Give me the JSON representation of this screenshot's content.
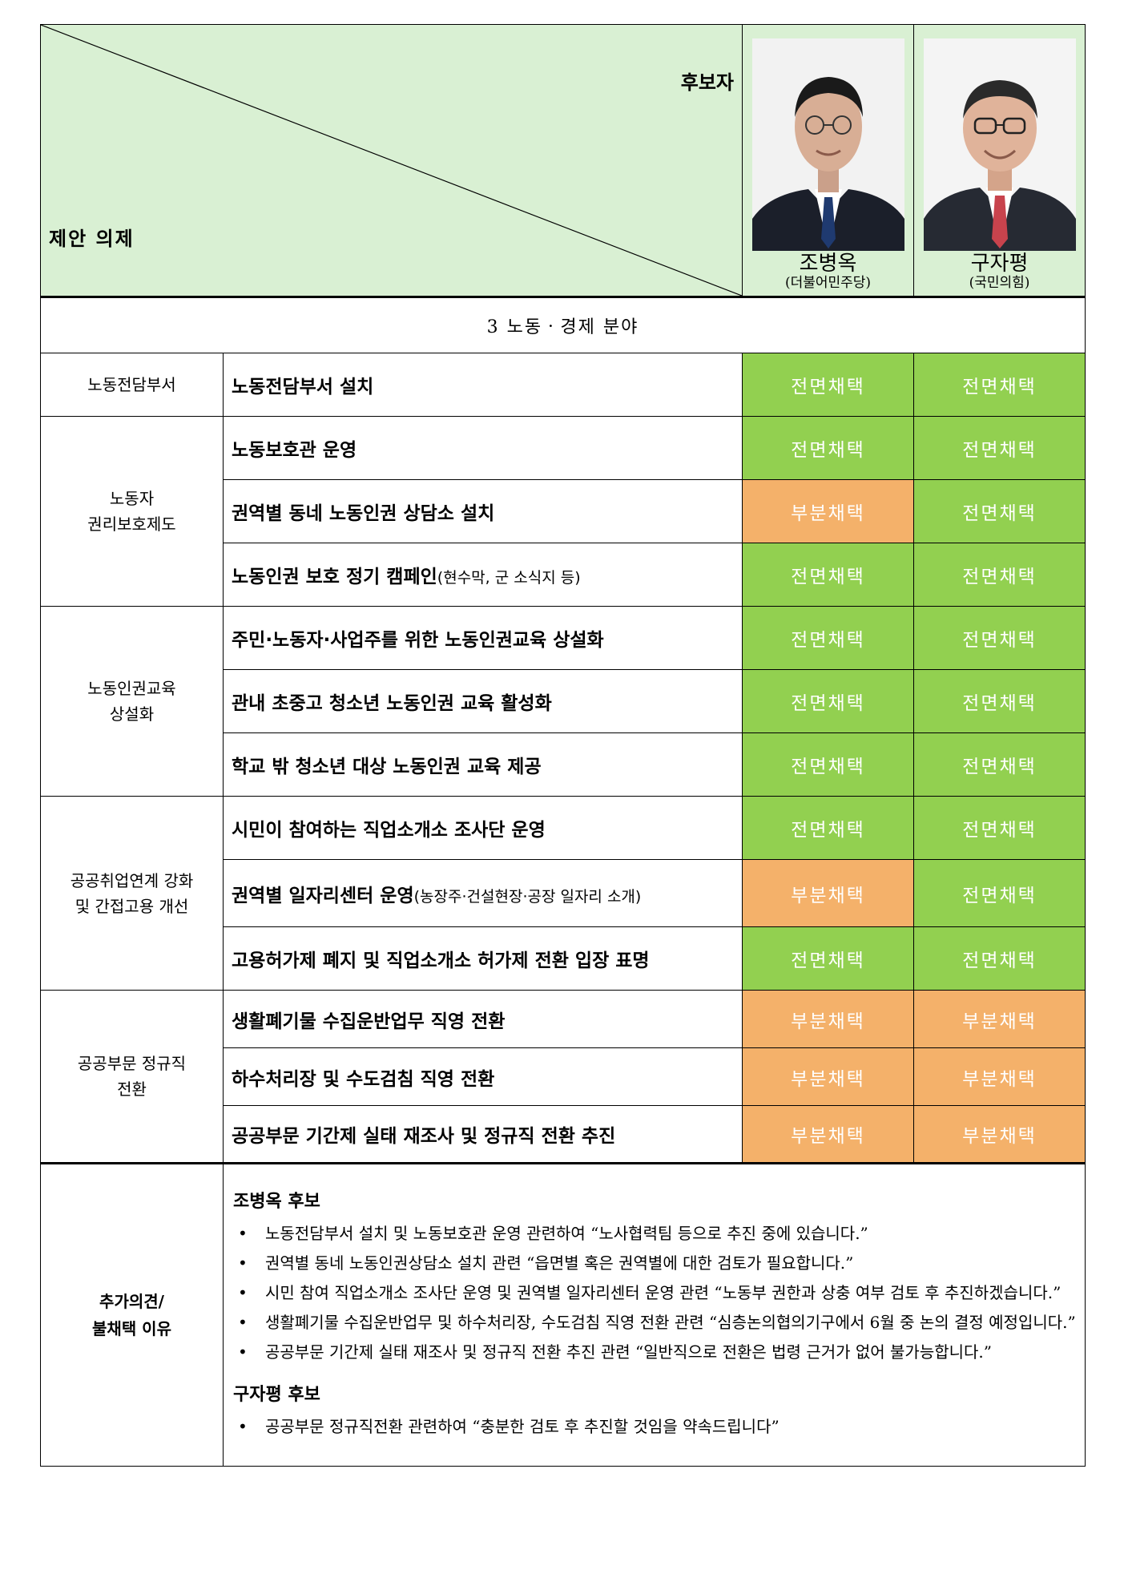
{
  "header": {
    "candidate_label": "후보자",
    "agenda_label": "제안 의제",
    "candidates": [
      {
        "name": "조병옥",
        "party": "(더불어민주당)",
        "tie_color": "#1f3a70",
        "suit_color": "#1b1f2a"
      },
      {
        "name": "구자평",
        "party": "(국민의힘)",
        "tie_color": "#c8434d",
        "suit_color": "#262a33"
      }
    ]
  },
  "section_title": "3 노동ㆍ경제 분야",
  "status_colors": {
    "전면채택": "#92d050",
    "부분채택": "#f4b16a"
  },
  "groups": [
    {
      "category": "노동전담부서",
      "rows": [
        {
          "item": "노동전담부서 설치",
          "note": "",
          "status": [
            "전면채택",
            "전면채택"
          ]
        }
      ]
    },
    {
      "category": "노동자\n권리보호제도",
      "rows": [
        {
          "item": "노동보호관 운영",
          "note": "",
          "status": [
            "전면채택",
            "전면채택"
          ]
        },
        {
          "item": "권역별 동네 노동인권 상담소 설치",
          "note": "",
          "status": [
            "부분채택",
            "전면채택"
          ]
        },
        {
          "item": "노동인권 보호 정기 캠페인",
          "note": "(현수막, 군 소식지 등)",
          "status": [
            "전면채택",
            "전면채택"
          ]
        }
      ]
    },
    {
      "category": "노동인권교육\n상설화",
      "rows": [
        {
          "item": "주민·노동자·사업주를 위한 노동인권교육 상설화",
          "note": "",
          "status": [
            "전면채택",
            "전면채택"
          ]
        },
        {
          "item": "관내 초중고 청소년 노동인권 교육 활성화",
          "note": "",
          "status": [
            "전면채택",
            "전면채택"
          ]
        },
        {
          "item": "학교 밖 청소년 대상 노동인권 교육 제공",
          "note": "",
          "status": [
            "전면채택",
            "전면채택"
          ]
        }
      ]
    },
    {
      "category": "공공취업연계 강화\n및 간접고용 개선",
      "rows": [
        {
          "item": "시민이 참여하는 직업소개소 조사단 운영",
          "note": "",
          "status": [
            "전면채택",
            "전면채택"
          ]
        },
        {
          "item": "권역별 일자리센터 운영",
          "note": "(농장주·건설현장·공장 일자리 소개)",
          "status": [
            "부분채택",
            "전면채택"
          ]
        },
        {
          "item": "고용허가제 폐지 및 직업소개소 허가제 전환 입장 표명",
          "note": "",
          "status": [
            "전면채택",
            "전면채택"
          ]
        }
      ]
    },
    {
      "category": "공공부문 정규직\n전환",
      "rows": [
        {
          "item": "생활폐기물 수집운반업무 직영 전환",
          "note": "",
          "status": [
            "부분채택",
            "부분채택"
          ]
        },
        {
          "item": "하수처리장 및 수도검침 직영 전환",
          "note": "",
          "status": [
            "부분채택",
            "부분채택"
          ]
        },
        {
          "item": "공공부문 기간제 실태 재조사 및 정규직 전환 추진",
          "note": "",
          "status": [
            "부분채택",
            "부분채택"
          ]
        }
      ]
    }
  ],
  "notes": {
    "label": "추가의견/\n불채택 이유",
    "blocks": [
      {
        "who": "조병옥 후보",
        "items": [
          "노동전담부서 설치 및 노동보호관 운영 관련하여 “노사협력팀 등으로 추진 중에 있습니다.”",
          "권역별 동네 노동인권상담소 설치 관련 “읍면별 혹은 권역별에 대한 검토가 필요합니다.”",
          "시민 참여 직업소개소 조사단 운영 및 권역별 일자리센터 운영 관련 “노동부 권한과 상충 여부 검토 후 추진하겠습니다.”",
          "생활폐기물 수집운반업무 및 하수처리장, 수도검침 직영 전환 관련 “심층논의협의기구에서 6월 중 논의 결정 예정입니다.”",
          "공공부문 기간제 실태 재조사 및 정규직 전환 추진 관련 “일반직으로 전환은 법령 근거가 없어 불가능합니다.”"
        ]
      },
      {
        "who": "구자평 후보",
        "items": [
          "공공부문 정규직전환 관련하여 “충분한 검토 후 추진할 것임을 약속드립니다”"
        ]
      }
    ]
  }
}
